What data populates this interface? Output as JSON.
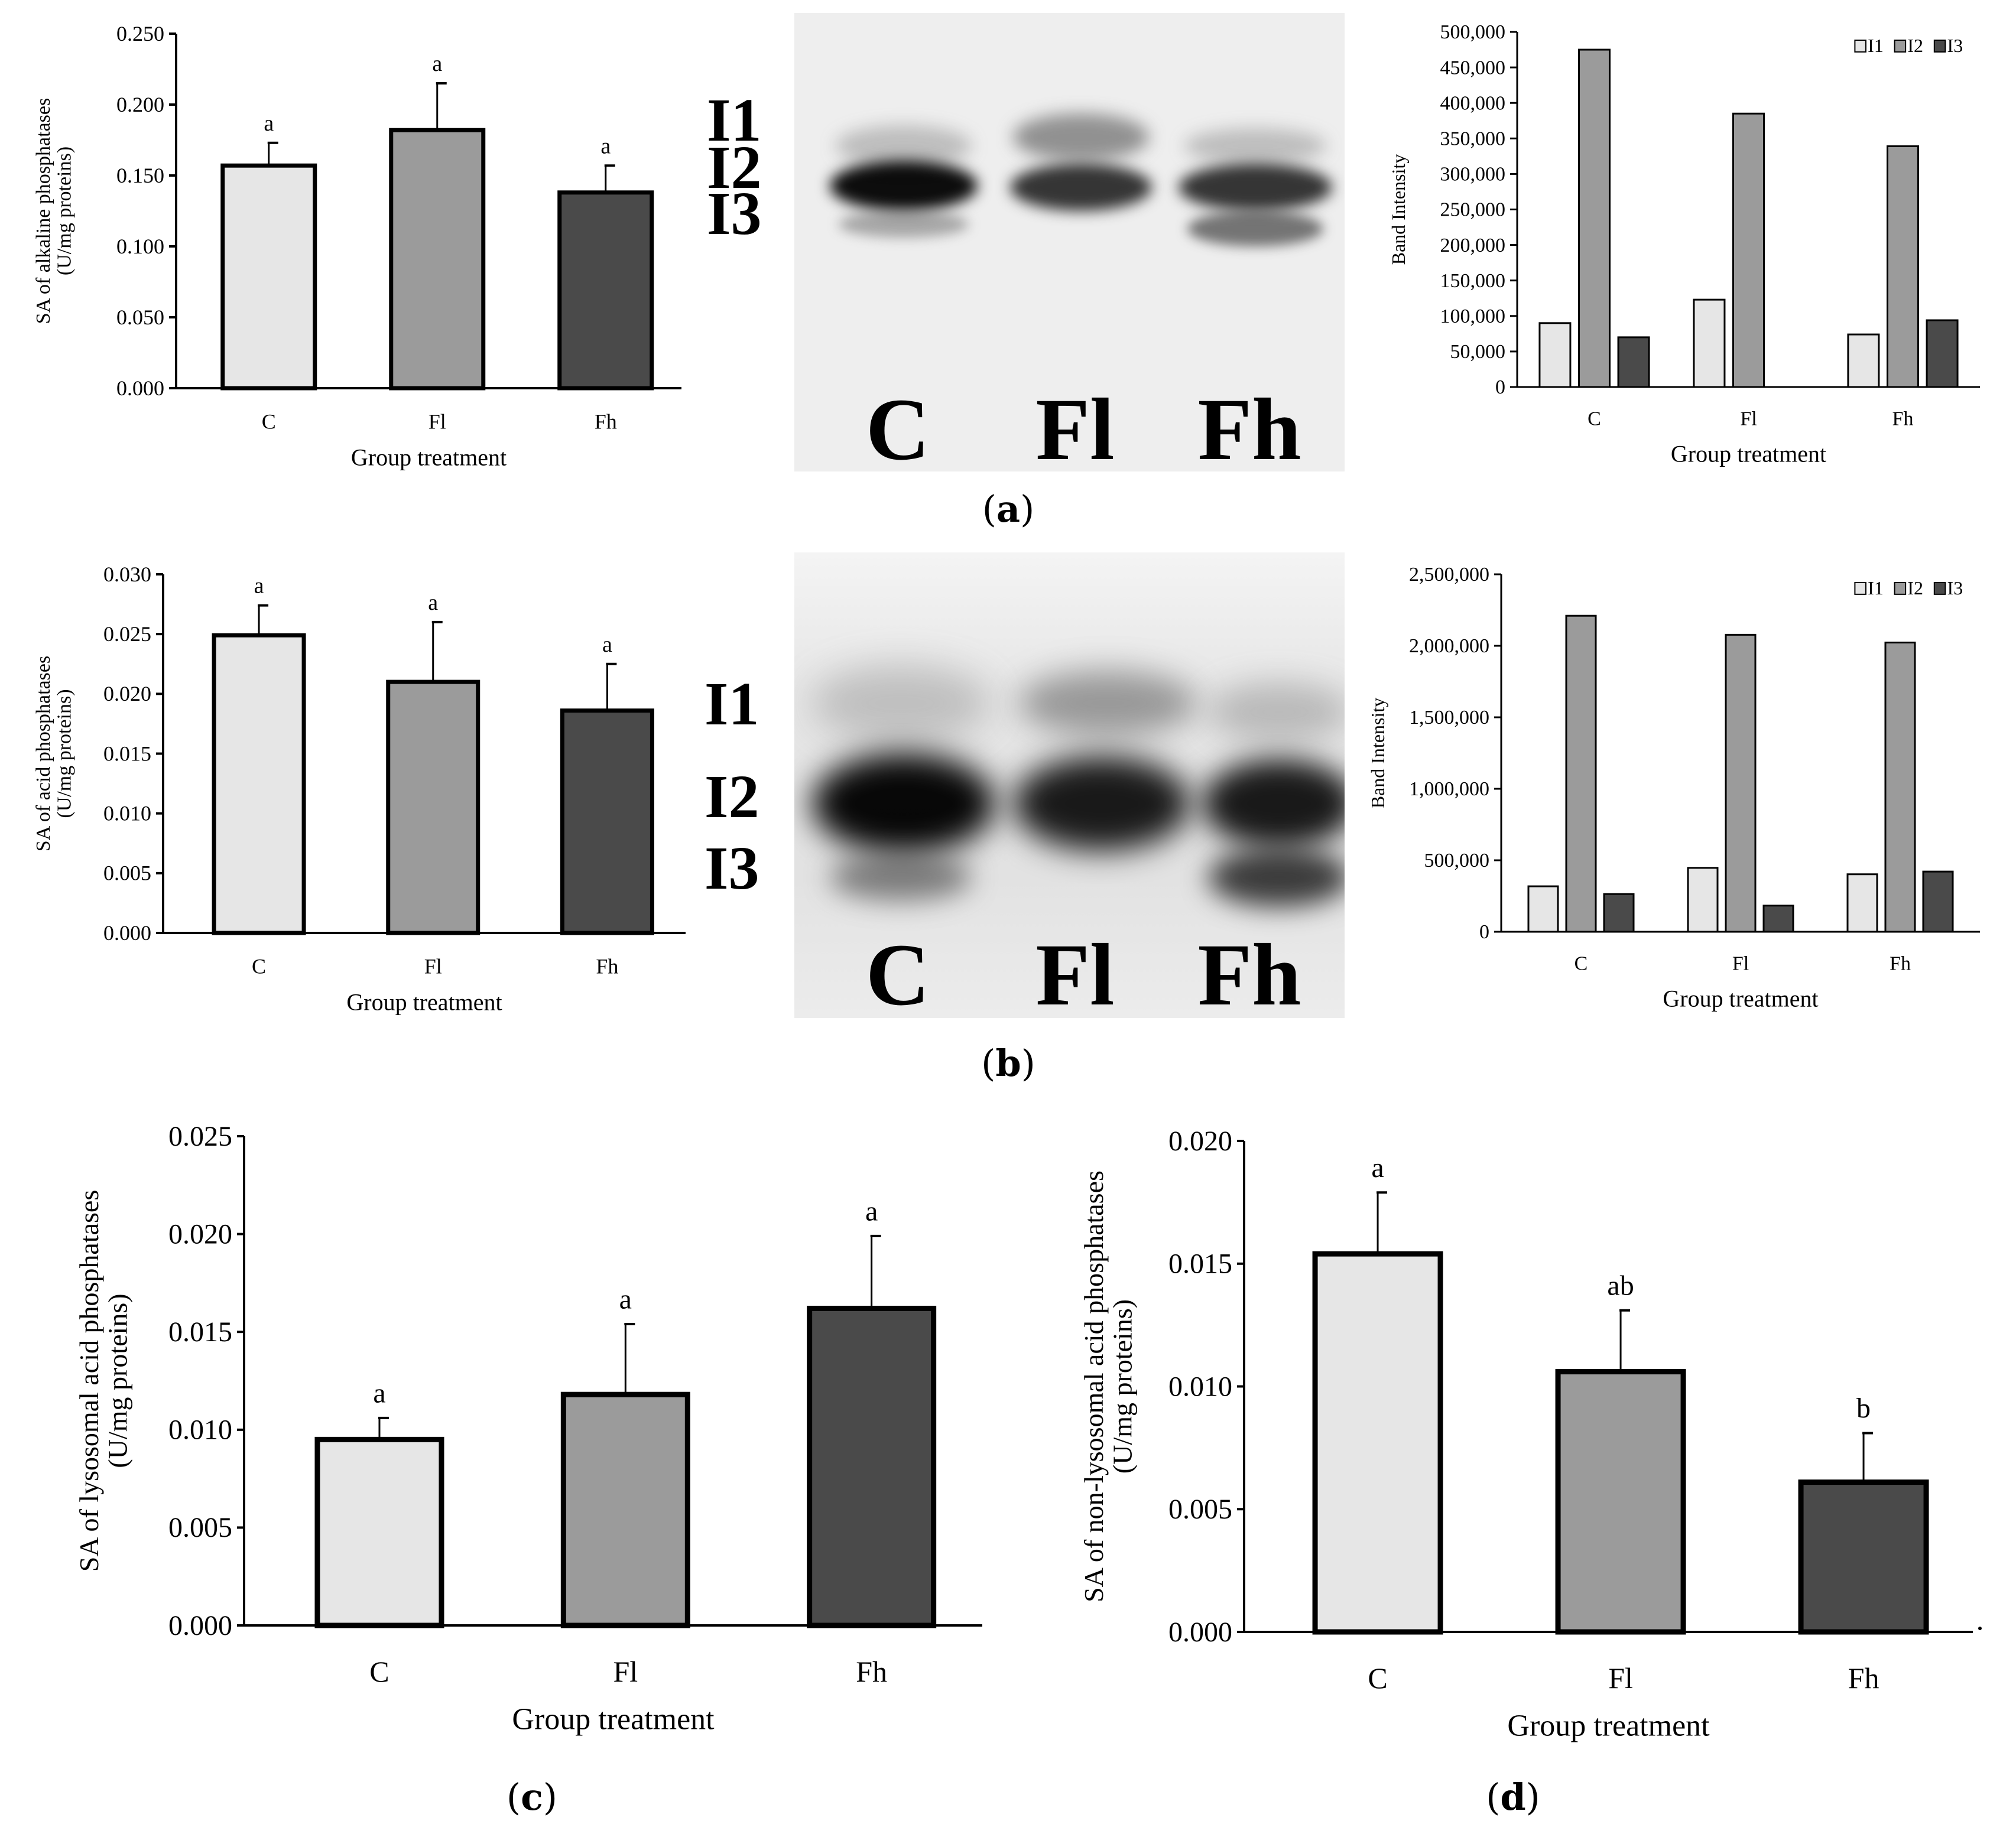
{
  "figure": {
    "panel_labels": {
      "a": "a",
      "b": "b",
      "c": "c",
      "d": "d"
    },
    "gel_a": {
      "lanes": [
        "C",
        "Fl",
        "Fh"
      ],
      "band_labels": [
        "I1",
        "I2",
        "I3"
      ]
    },
    "gel_b": {
      "lanes": [
        "C",
        "Fl",
        "Fh"
      ],
      "band_labels": [
        "I1",
        "I2",
        "I3"
      ]
    }
  },
  "colors": {
    "C": "#e6e6e6",
    "Fl": "#9b9b9b",
    "Fh": "#4a4a4a",
    "I1": "#e6e6e6",
    "I2": "#9b9b9b",
    "I3": "#4a4a4a",
    "axis": "#000000"
  },
  "chart_data": [
    {
      "id": "a_left",
      "panel": "a",
      "type": "bar",
      "title": "",
      "categories": [
        "C",
        "Fl",
        "Fh"
      ],
      "values": [
        0.157,
        0.182,
        0.138
      ],
      "error_upper": [
        0.173,
        0.215,
        0.157
      ],
      "significance": [
        "a",
        "a",
        "a"
      ],
      "xlabel": "Group treatment",
      "ylabel": [
        "SA of alkaline phosphatases",
        "(U/mg proteins)"
      ],
      "ylim": [
        0,
        0.25
      ],
      "yticks": [
        "0.000",
        "0.050",
        "0.100",
        "0.150",
        "0.200",
        "0.250"
      ],
      "grid": false
    },
    {
      "id": "a_right",
      "panel": "a",
      "type": "bar",
      "title": "",
      "categories": [
        "C",
        "Fl",
        "Fh"
      ],
      "series": [
        {
          "name": "I1",
          "values": [
            90000,
            123000,
            74000
          ]
        },
        {
          "name": "I2",
          "values": [
            475000,
            385000,
            339000
          ]
        },
        {
          "name": "I3",
          "values": [
            70000,
            0,
            94000
          ]
        }
      ],
      "xlabel": "Group treatment",
      "ylabel": "Band Intensity",
      "ylim": [
        0,
        500000
      ],
      "yticks": [
        "0",
        "50,000",
        "100,000",
        "150,000",
        "200,000",
        "250,000",
        "300,000",
        "350,000",
        "400,000",
        "450,000",
        "500,000"
      ],
      "legend": [
        "I1",
        "I2",
        "I3"
      ],
      "legend_position": "top-right",
      "grid": false
    },
    {
      "id": "b_left",
      "panel": "b",
      "type": "bar",
      "title": "",
      "categories": [
        "C",
        "Fl",
        "Fh"
      ],
      "values": [
        0.0249,
        0.021,
        0.0186
      ],
      "error_upper": [
        0.0274,
        0.026,
        0.0225
      ],
      "significance": [
        "a",
        "a",
        "a"
      ],
      "xlabel": "Group treatment",
      "ylabel": [
        "SA of acid phosphatases",
        "(U/mg proteins)"
      ],
      "ylim": [
        0,
        0.03
      ],
      "yticks": [
        "0.000",
        "0.005",
        "0.010",
        "0.015",
        "0.020",
        "0.025",
        "0.030"
      ],
      "grid": false
    },
    {
      "id": "b_right",
      "panel": "b",
      "type": "bar",
      "title": "",
      "categories": [
        "C",
        "Fl",
        "Fh"
      ],
      "series": [
        {
          "name": "I1",
          "values": [
            318000,
            447000,
            402000
          ]
        },
        {
          "name": "I2",
          "values": [
            2210000,
            2077000,
            2023000
          ]
        },
        {
          "name": "I3",
          "values": [
            264000,
            183000,
            421000
          ]
        }
      ],
      "xlabel": "Group treatment",
      "ylabel": "Band Intensity",
      "ylim": [
        0,
        2500000
      ],
      "yticks": [
        "0",
        "500,000",
        "1,000,000",
        "1,500,000",
        "2,000,000",
        "2,500,000"
      ],
      "legend": [
        "I1",
        "I2",
        "I3"
      ],
      "legend_position": "top-right",
      "grid": false
    },
    {
      "id": "c",
      "panel": "c",
      "type": "bar",
      "title": "",
      "categories": [
        "C",
        "Fl",
        "Fh"
      ],
      "values": [
        0.0095,
        0.0118,
        0.0162
      ],
      "error_upper": [
        0.0106,
        0.0154,
        0.0199
      ],
      "significance": [
        "a",
        "a",
        "a"
      ],
      "xlabel": "Group treatment",
      "ylabel": [
        "SA of lysosomal acid phosphatases",
        "(U/mg proteins)"
      ],
      "ylim": [
        0,
        0.025
      ],
      "yticks": [
        "0.000",
        "0.005",
        "0.010",
        "0.015",
        "0.020",
        "0.025"
      ],
      "grid": false
    },
    {
      "id": "d",
      "panel": "d",
      "type": "bar",
      "title": "",
      "categories": [
        "C",
        "Fl",
        "Fh"
      ],
      "values": [
        0.0154,
        0.0106,
        0.0061
      ],
      "error_upper": [
        0.0179,
        0.0131,
        0.0081
      ],
      "significance": [
        "a",
        "ab",
        "b"
      ],
      "xlabel": "Group treatment",
      "ylabel": [
        "SA of non-lysosomal acid phosphatases",
        "(U/mg proteins)"
      ],
      "ylim": [
        0,
        0.02
      ],
      "yticks": [
        "0.000",
        "0.005",
        "0.010",
        "0.015",
        "0.020"
      ],
      "grid": false
    }
  ]
}
